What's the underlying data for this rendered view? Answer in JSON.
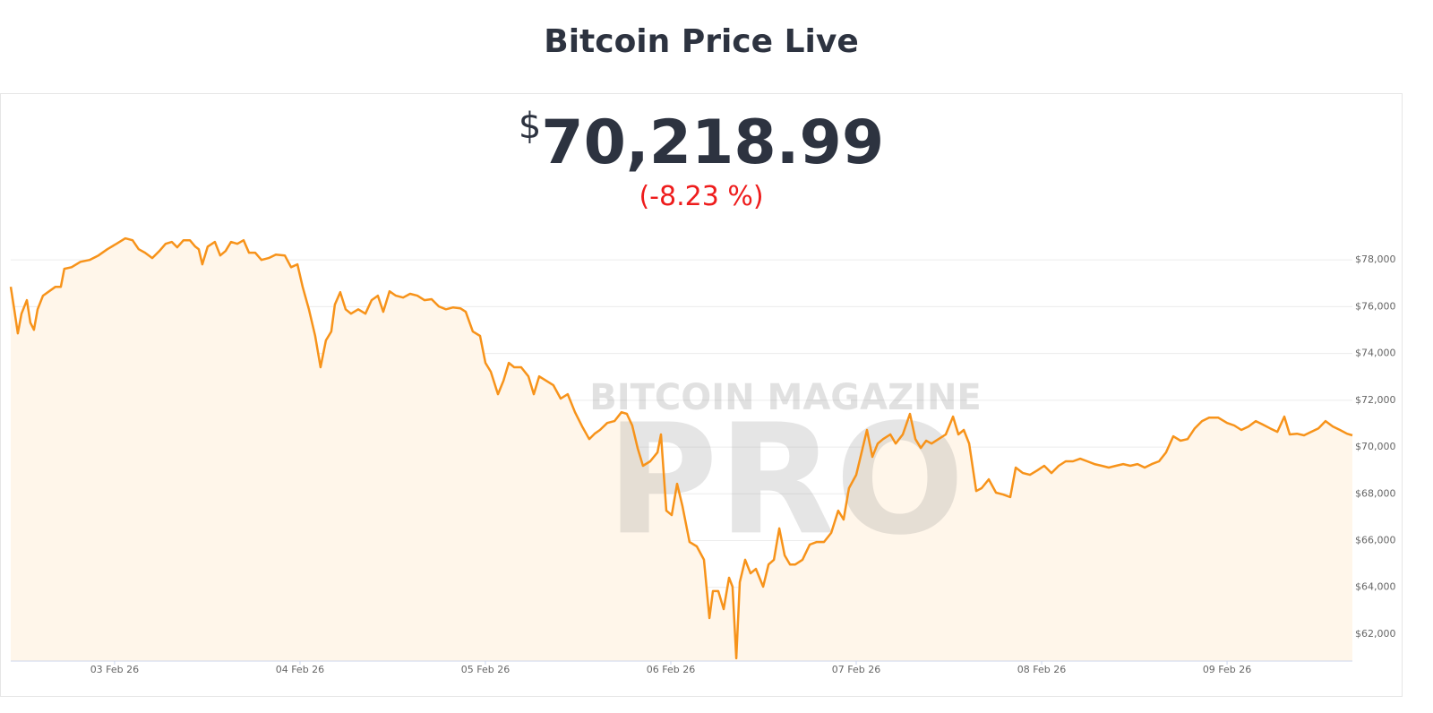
{
  "chart_data": {
    "type": "line",
    "title": "Bitcoin Price Live",
    "price_symbol": "$",
    "price": "70,218.99",
    "change": "(-8.23 %)",
    "watermark": "BITCOIN MAGAZINE",
    "watermark_big": "PRO",
    "color": "#f7931a",
    "area_color": "#fff6ea",
    "grid": true,
    "xlim": [
      2.44,
      9.676
    ],
    "ylim": [
      60850,
      79500
    ],
    "xticks": [
      {
        "value": 3,
        "label": "03 Feb 26"
      },
      {
        "value": 4,
        "label": "04 Feb 26"
      },
      {
        "value": 5,
        "label": "05 Feb 26"
      },
      {
        "value": 6,
        "label": "06 Feb 26"
      },
      {
        "value": 7,
        "label": "07 Feb 26"
      },
      {
        "value": 8,
        "label": "08 Feb 26"
      },
      {
        "value": 9,
        "label": "09 Feb 26"
      }
    ],
    "yticks": [
      {
        "value": 62000,
        "label": "$62,000"
      },
      {
        "value": 64000,
        "label": "$64,000"
      },
      {
        "value": 66000,
        "label": "$66,000"
      },
      {
        "value": 68000,
        "label": "$68,000"
      },
      {
        "value": 70000,
        "label": "$70,000"
      },
      {
        "value": 72000,
        "label": "$72,000"
      },
      {
        "value": 74000,
        "label": "$74,000"
      },
      {
        "value": 76000,
        "label": "$76,000"
      },
      {
        "value": 78000,
        "label": "$78,000"
      }
    ],
    "x": [
      2.44,
      2.459,
      2.478,
      2.498,
      2.527,
      2.546,
      2.565,
      2.585,
      2.614,
      2.647,
      2.681,
      2.71,
      2.729,
      2.768,
      2.816,
      2.865,
      2.913,
      2.961,
      3.01,
      3.058,
      3.097,
      3.13,
      3.164,
      3.203,
      3.242,
      3.275,
      3.309,
      3.338,
      3.372,
      3.406,
      3.435,
      3.454,
      3.473,
      3.502,
      3.541,
      3.57,
      3.599,
      3.628,
      3.662,
      3.696,
      3.725,
      3.758,
      3.792,
      3.831,
      3.87,
      3.918,
      3.952,
      3.986,
      4.014,
      4.048,
      4.082,
      4.111,
      4.14,
      4.169,
      4.188,
      4.217,
      4.246,
      4.275,
      4.314,
      4.353,
      4.386,
      4.42,
      4.449,
      4.483,
      4.517,
      4.556,
      4.594,
      4.633,
      4.671,
      4.71,
      4.749,
      4.787,
      4.826,
      4.865,
      4.894,
      4.932,
      4.971,
      5.0,
      5.029,
      5.068,
      5.097,
      5.126,
      5.155,
      5.193,
      5.232,
      5.261,
      5.29,
      5.329,
      5.367,
      5.406,
      5.444,
      5.483,
      5.522,
      5.56,
      5.589,
      5.618,
      5.657,
      5.696,
      5.734,
      5.763,
      5.792,
      5.821,
      5.85,
      5.889,
      5.928,
      5.947,
      5.976,
      6.005,
      6.034,
      6.063,
      6.101,
      6.14,
      6.179,
      6.208,
      6.227,
      6.256,
      6.285,
      6.314,
      6.333,
      6.353,
      6.372,
      6.401,
      6.43,
      6.459,
      6.498,
      6.527,
      6.556,
      6.585,
      6.614,
      6.643,
      6.671,
      6.71,
      6.749,
      6.787,
      6.826,
      6.865,
      6.903,
      6.932,
      6.961,
      7.0,
      7.029,
      7.058,
      7.087,
      7.116,
      7.145,
      7.184,
      7.213,
      7.251,
      7.29,
      7.319,
      7.348,
      7.377,
      7.406,
      7.444,
      7.483,
      7.522,
      7.551,
      7.58,
      7.609,
      7.647,
      7.676,
      7.715,
      7.754,
      7.792,
      7.831,
      7.86,
      7.899,
      7.937,
      7.976,
      8.014,
      8.053,
      8.092,
      8.13,
      8.169,
      8.208,
      8.246,
      8.285,
      8.324,
      8.362,
      8.401,
      8.44,
      8.478,
      8.517,
      8.556,
      8.594,
      8.633,
      8.671,
      8.71,
      8.749,
      8.787,
      8.826,
      8.865,
      8.903,
      8.952,
      9.0,
      9.039,
      9.077,
      9.116,
      9.155,
      9.193,
      9.232,
      9.271,
      9.309,
      9.338,
      9.377,
      9.415,
      9.454,
      9.493,
      9.531,
      9.57,
      9.609,
      9.647,
      9.676
    ],
    "values": [
      76850,
      75890,
      74860,
      75700,
      76280,
      75320,
      75010,
      75890,
      76470,
      76660,
      76850,
      76850,
      77620,
      77690,
      77920,
      78000,
      78190,
      78460,
      78690,
      78920,
      78840,
      78460,
      78310,
      78080,
      78380,
      78690,
      78770,
      78540,
      78840,
      78840,
      78570,
      78460,
      77810,
      78570,
      78770,
      78190,
      78380,
      78770,
      78690,
      78840,
      78310,
      78310,
      78000,
      78080,
      78230,
      78190,
      77690,
      77810,
      76850,
      75890,
      74750,
      73410,
      74560,
      74940,
      76090,
      76620,
      75890,
      75700,
      75890,
      75700,
      76280,
      76470,
      75780,
      76660,
      76470,
      76390,
      76550,
      76470,
      76280,
      76320,
      76010,
      75890,
      75970,
      75930,
      75780,
      74940,
      74750,
      73600,
      73220,
      72260,
      72830,
      73600,
      73410,
      73410,
      73020,
      72260,
      73020,
      72830,
      72640,
      72070,
      72260,
      71490,
      70880,
      70340,
      70570,
      70730,
      71030,
      71110,
      71490,
      71420,
      70920,
      69960,
      69200,
      69390,
      69770,
      70540,
      67280,
      67090,
      68430,
      67470,
      65940,
      65750,
      65180,
      62690,
      63840,
      63840,
      63070,
      64410,
      64030,
      60970,
      64220,
      65180,
      64600,
      64790,
      64030,
      64980,
      65180,
      66520,
      65370,
      64980,
      64980,
      65180,
      65830,
      65940,
      65940,
      66330,
      67280,
      66900,
      68240,
      68810,
      69770,
      70730,
      69580,
      70150,
      70340,
      70540,
      70150,
      70540,
      71420,
      70340,
      69960,
      70270,
      70150,
      70340,
      70540,
      71300,
      70540,
      70730,
      70150,
      68120,
      68240,
      68620,
      68050,
      67970,
      67860,
      69120,
      68890,
      68810,
      69000,
      69200,
      68890,
      69200,
      69390,
      69390,
      69500,
      69390,
      69270,
      69200,
      69120,
      69200,
      69270,
      69200,
      69270,
      69120,
      69270,
      69390,
      69770,
      70460,
      70270,
      70340,
      70800,
      71110,
      71260,
      71260,
      71030,
      70920,
      70730,
      70880,
      71110,
      70960,
      70800,
      70650,
      71300,
      70540,
      70570,
      70500,
      70650,
      70800,
      71110,
      70880,
      70730,
      70570,
      70500
    ]
  }
}
